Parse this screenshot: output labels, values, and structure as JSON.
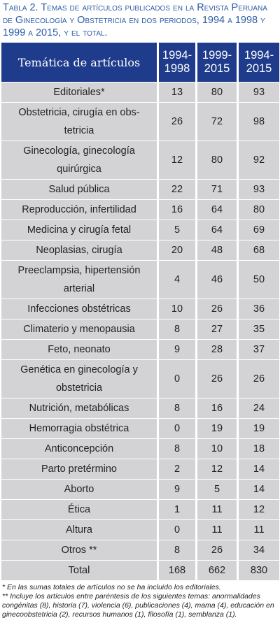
{
  "caption": "Tabla 2. Temas de artículos publicados en la Revista Peruana de Ginecología y Obstetricia en dos periodos, 1994 a 1998 y 1999 a 2015, y el total.",
  "table": {
    "header": [
      "Temática de artículos",
      "1994-1998",
      "1999-2015",
      "1994-2015"
    ],
    "rows": [
      [
        "Editoriales*",
        13,
        80,
        93
      ],
      [
        "Obstetricia, cirugía en obs-tetricia",
        26,
        72,
        98
      ],
      [
        "Ginecología, ginecología quirúrgica",
        12,
        80,
        92
      ],
      [
        "Salud pública",
        22,
        71,
        93
      ],
      [
        "Reproducción, infertilidad",
        16,
        64,
        80
      ],
      [
        "Medicina y cirugía fetal",
        5,
        64,
        69
      ],
      [
        "Neoplasias, cirugía",
        20,
        48,
        68
      ],
      [
        "Preeclampsia, hipertensión arterial",
        4,
        46,
        50
      ],
      [
        "Infecciones obstétricas",
        10,
        26,
        36
      ],
      [
        "Climaterio y menopausia",
        8,
        27,
        35
      ],
      [
        "Feto, neonato",
        9,
        28,
        37
      ],
      [
        "Genética en ginecología y obstetricia",
        0,
        26,
        26
      ],
      [
        "Nutrición, metabólicas",
        8,
        16,
        24
      ],
      [
        "Hemorragia obstétrica",
        0,
        19,
        19
      ],
      [
        "Anticoncepción",
        8,
        10,
        18
      ],
      [
        "Parto pretérmino",
        2,
        12,
        14
      ],
      [
        "Aborto",
        9,
        5,
        14
      ],
      [
        "Ética",
        1,
        11,
        12
      ],
      [
        "Altura",
        0,
        11,
        11
      ],
      [
        "Otros **",
        8,
        26,
        34
      ],
      [
        "Total",
        168,
        662,
        830
      ]
    ]
  },
  "footnotes": [
    "* En las sumas totales de artículos no se ha incluido los editoriales.",
    "** Incluye los artículos entre paréntesis de los siguientes temas: anormalidades congénitas (8), historia (7), violencia (6), publicaciones (4), mama (4), educación en ginecoobstetricia (2), recursos humanos (1), filosofía (1), semblanza (1)."
  ]
}
